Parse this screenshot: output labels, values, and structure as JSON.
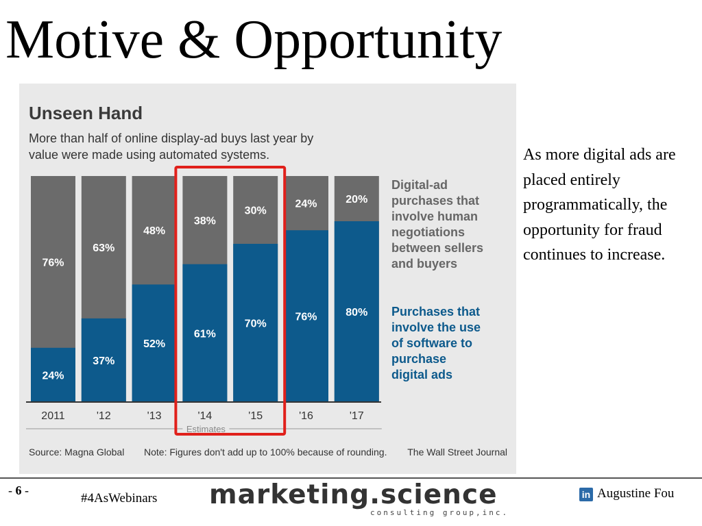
{
  "slide": {
    "title": "Motive & Opportunity",
    "side_note": "As more digital ads are placed entirely programmatically, the opportunity for fraud continues to increase."
  },
  "chart_data": {
    "type": "bar",
    "stacked": true,
    "title": "Unseen Hand",
    "subtitle": "More than half of online display-ad buys last year by value were made using automated systems.",
    "categories": [
      "2011",
      "'12",
      "'13",
      "'14",
      "'15",
      "'16",
      "'17"
    ],
    "series": [
      {
        "name": "Purchases that involve the use of software to purchase digital ads",
        "label_lines": [
          "Purchases that",
          "involve the use",
          "of software to",
          "purchase",
          "digital ads"
        ],
        "values": [
          24,
          37,
          52,
          61,
          70,
          76,
          80
        ],
        "labels": [
          "24%",
          "37%",
          "52%",
          "61%",
          "70%",
          "76%",
          "80%"
        ],
        "color": "#0d5a8c"
      },
      {
        "name": "Digital-ad purchases that involve human negotiations between sellers and buyers",
        "label_lines": [
          "Digital-ad",
          "purchases that",
          "involve human",
          "negotiations",
          "between sellers",
          "and buyers"
        ],
        "values": [
          76,
          63,
          48,
          38,
          30,
          24,
          20
        ],
        "labels": [
          "76%",
          "63%",
          "48%",
          "38%",
          "30%",
          "24%",
          "20%"
        ],
        "color": "#6b6b6b"
      }
    ],
    "ylim": [
      0,
      100
    ],
    "estimates_label": "Estimates",
    "estimates_range": [
      "'14",
      "'17"
    ],
    "highlight_categories": [
      "'14",
      "'15"
    ],
    "highlight_color": "#e0201b",
    "source": "Source: Magna Global",
    "note": "Note: Figures don't add up to 100% because of rounding.",
    "publisher": "The Wall Street Journal"
  },
  "footer": {
    "page_prefix": "- ",
    "page_number": "6",
    "page_suffix": " -",
    "hashtag": "#4AsWebinars",
    "brand": "marketing.science",
    "brand_sub": "consulting group,inc.",
    "linkedin_icon": "linkedin-icon",
    "linkedin_text": "in",
    "author": "Augustine Fou"
  }
}
